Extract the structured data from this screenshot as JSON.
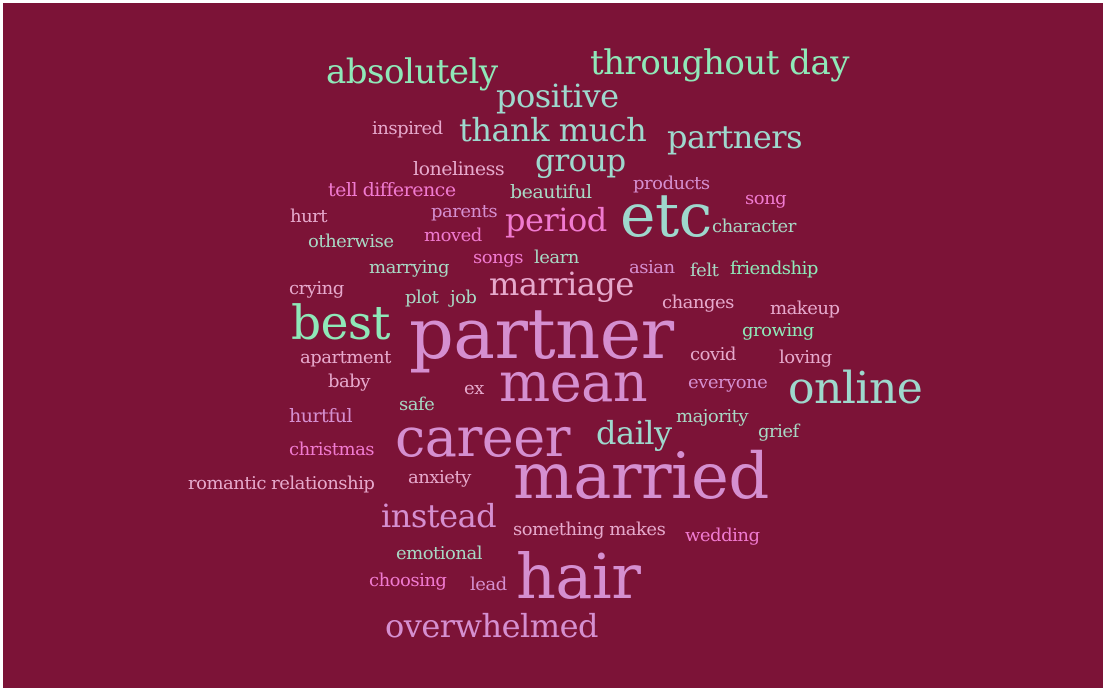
{
  "words": {
    "absolutely": "absolutely",
    "throughout_day": "throughout day",
    "positive": "positive",
    "inspired": "inspired",
    "thank_much": "thank much",
    "partners": "partners",
    "group": "group",
    "loneliness": "loneliness",
    "tell_difference": "tell difference",
    "beautiful": "beautiful",
    "products": "products",
    "song": "song",
    "hurt": "hurt",
    "parents": "parents",
    "period": "period",
    "etc": "etc",
    "character": "character",
    "otherwise": "otherwise",
    "moved": "moved",
    "songs": "songs",
    "learn": "learn",
    "marrying": "marrying",
    "asian": "asian",
    "felt": "felt",
    "friendship": "friendship",
    "crying": "crying",
    "plot": "plot",
    "job": "job",
    "marriage": "marriage",
    "changes": "changes",
    "makeup": "makeup",
    "best": "best",
    "partner": "partner",
    "growing": "growing",
    "apartment": "apartment",
    "covid": "covid",
    "loving": "loving",
    "baby": "baby",
    "mean": "mean",
    "online": "online",
    "everyone": "everyone",
    "ex": "ex",
    "safe": "safe",
    "hurtful": "hurtful",
    "majority": "majority",
    "career": "career",
    "daily": "daily",
    "grief": "grief",
    "christmas": "christmas",
    "romantic_relationship": "romantic relationship",
    "anxiety": "anxiety",
    "married": "married",
    "instead": "instead",
    "something_makes": "something makes",
    "wedding": "wedding",
    "emotional": "emotional",
    "choosing": "choosing",
    "lead": "lead",
    "hair": "hair",
    "overwhelmed": "overwhelmed"
  },
  "colors": {
    "background": "#7c1337",
    "mint": "#8fe8b8",
    "teal": "#9ed8cd",
    "lavender": "#d58fd0",
    "pink": "#f07ad0",
    "rose": "#e6a9cc",
    "sage": "#a8d8c4"
  }
}
